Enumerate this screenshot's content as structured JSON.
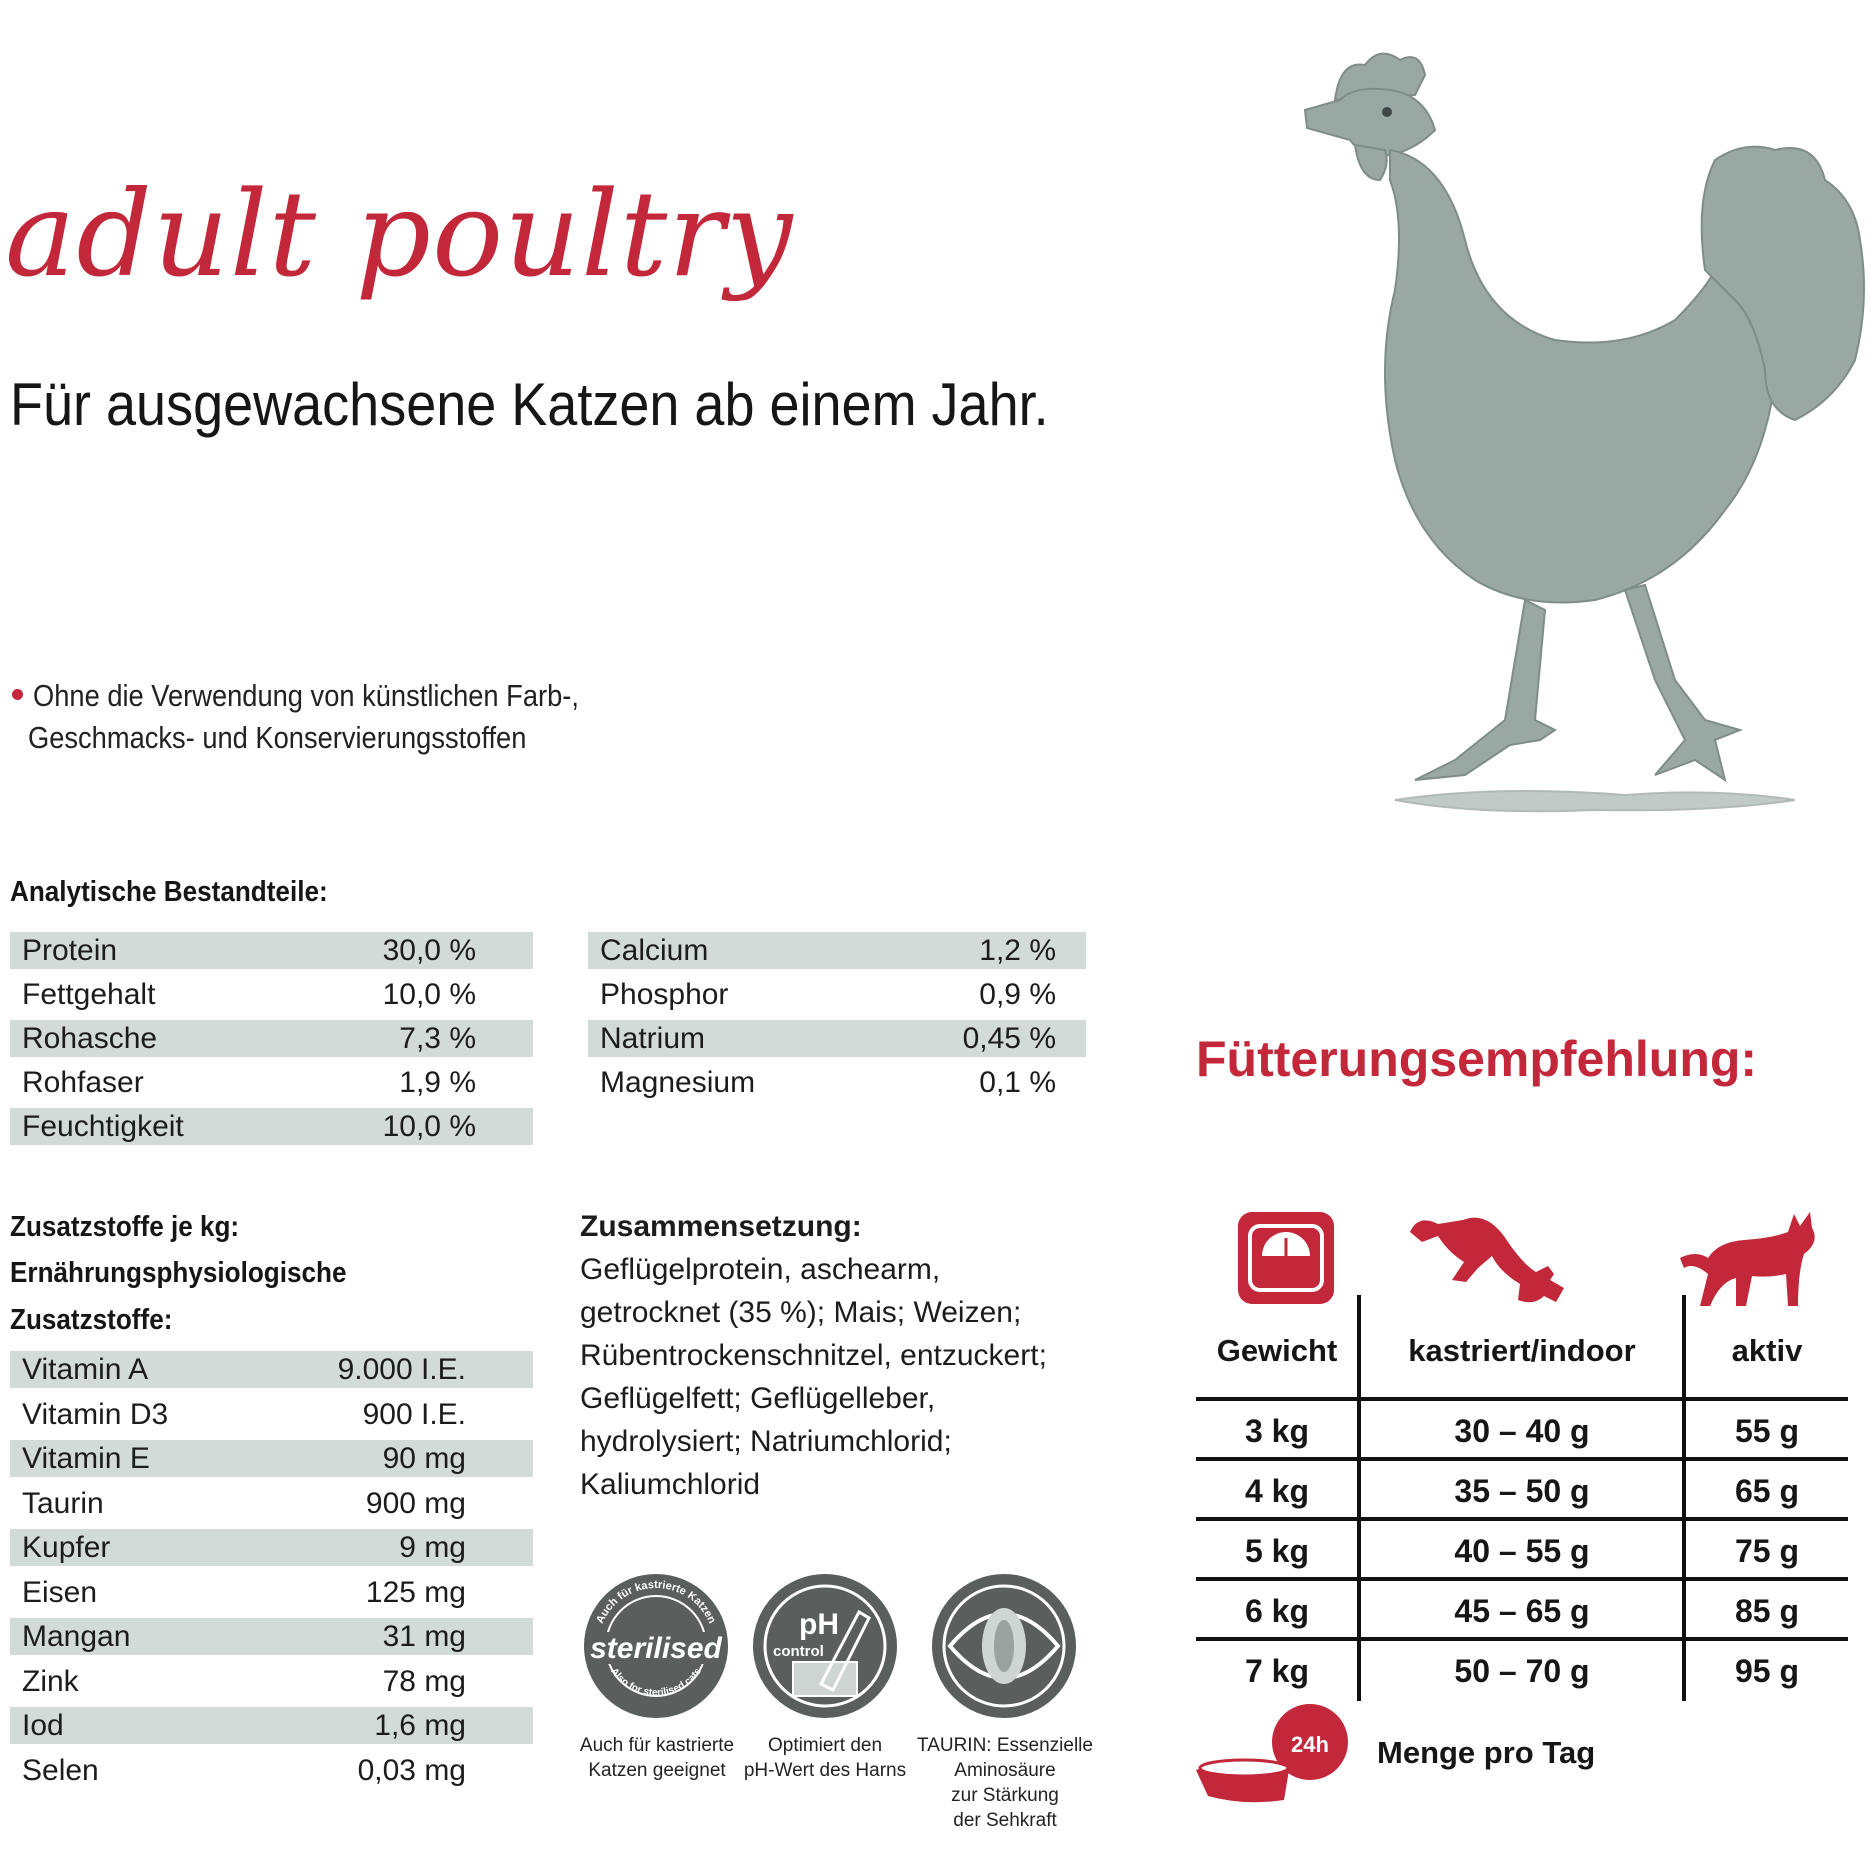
{
  "header": {
    "title": "adult poultry",
    "subtitle": "Für ausgewachsene Katzen ab einem Jahr."
  },
  "bullet": {
    "line1": "Ohne die Verwendung von künstlichen Farb-,",
    "line2": "Geschmacks- und Konservierungsstoffen"
  },
  "analytics": {
    "heading": "Analytische Bestandteile:",
    "left": [
      {
        "name": "Protein",
        "value": "30,0 %"
      },
      {
        "name": "Fettgehalt",
        "value": "10,0 %"
      },
      {
        "name": "Rohasche",
        "value": "7,3 %"
      },
      {
        "name": "Rohfaser",
        "value": "1,9 %"
      },
      {
        "name": "Feuchtigkeit",
        "value": "10,0 %"
      }
    ],
    "right": [
      {
        "name": "Calcium",
        "value": "1,2 %"
      },
      {
        "name": "Phosphor",
        "value": "0,9 %"
      },
      {
        "name": "Natrium",
        "value": "0,45 %"
      },
      {
        "name": "Magnesium",
        "value": "0,1 %"
      }
    ]
  },
  "additives": {
    "heading1": "Zusatzstoffe je kg:",
    "heading2": "Ernährungsphysiologische",
    "heading3": "Zusatzstoffe:",
    "items": [
      {
        "name": "Vitamin A",
        "value": "9.000 I.E."
      },
      {
        "name": "Vitamin D3",
        "value": "900 I.E."
      },
      {
        "name": "Vitamin E",
        "value": "90 mg"
      },
      {
        "name": "Taurin",
        "value": "900 mg"
      },
      {
        "name": "Kupfer",
        "value": "9 mg"
      },
      {
        "name": "Eisen",
        "value": "125 mg"
      },
      {
        "name": "Mangan",
        "value": "31 mg"
      },
      {
        "name": "Zink",
        "value": "78 mg"
      },
      {
        "name": "Iod",
        "value": "1,6 mg"
      },
      {
        "name": "Selen",
        "value": "0,03 mg"
      }
    ]
  },
  "composition": {
    "label": "Zusammensetzung:",
    "text": " Geflügelprotein, aschearm, getrocknet (35 %); Mais; Weizen; Rübentrockenschnitzel, entzuckert; Geflügelfett; Geflügelleber, hydrolysiert; Natriumchlorid; Kaliumchlorid"
  },
  "badges": [
    {
      "icon_text": "sterilised",
      "ring_top": "Auch für kastrierte Katzen",
      "ring_bottom": "Also for sterilised cats",
      "caption1": "Auch für kastrierte",
      "caption2": "Katzen geeignet"
    },
    {
      "icon_text1": "pH",
      "icon_text2": "control",
      "caption1": "Optimiert den",
      "caption2": "pH-Wert des Harns"
    },
    {
      "caption1": "TAURIN: Essenzielle",
      "caption2": "Aminosäure",
      "caption3": "zur Stärkung",
      "caption4": "der Sehkraft"
    }
  ],
  "feeding": {
    "title": "Fütterungsempfehlung:",
    "headers": [
      "Gewicht",
      "kastriert/indoor",
      "aktiv"
    ],
    "rows": [
      [
        "3 kg",
        "30 – 40 g",
        "55 g"
      ],
      [
        "4 kg",
        "35 – 50 g",
        "65 g"
      ],
      [
        "5 kg",
        "40 – 55 g",
        "75 g"
      ],
      [
        "6 kg",
        "45 – 65 g",
        "85 g"
      ],
      [
        "7 kg",
        "50 – 70 g",
        "95 g"
      ]
    ],
    "bowl_badge": "24h",
    "per_day": "Menge pro Tag"
  },
  "colors": {
    "accent_red": "#c3273a",
    "row_shade": "#d3dbd9",
    "illustration_grey": "#9aa8a4",
    "badge_grey": "#5a5f5e"
  },
  "icons": [
    "hen-illustration",
    "scale-icon",
    "stretching-cat-icon",
    "standing-cat-icon",
    "food-bowl-icon"
  ]
}
